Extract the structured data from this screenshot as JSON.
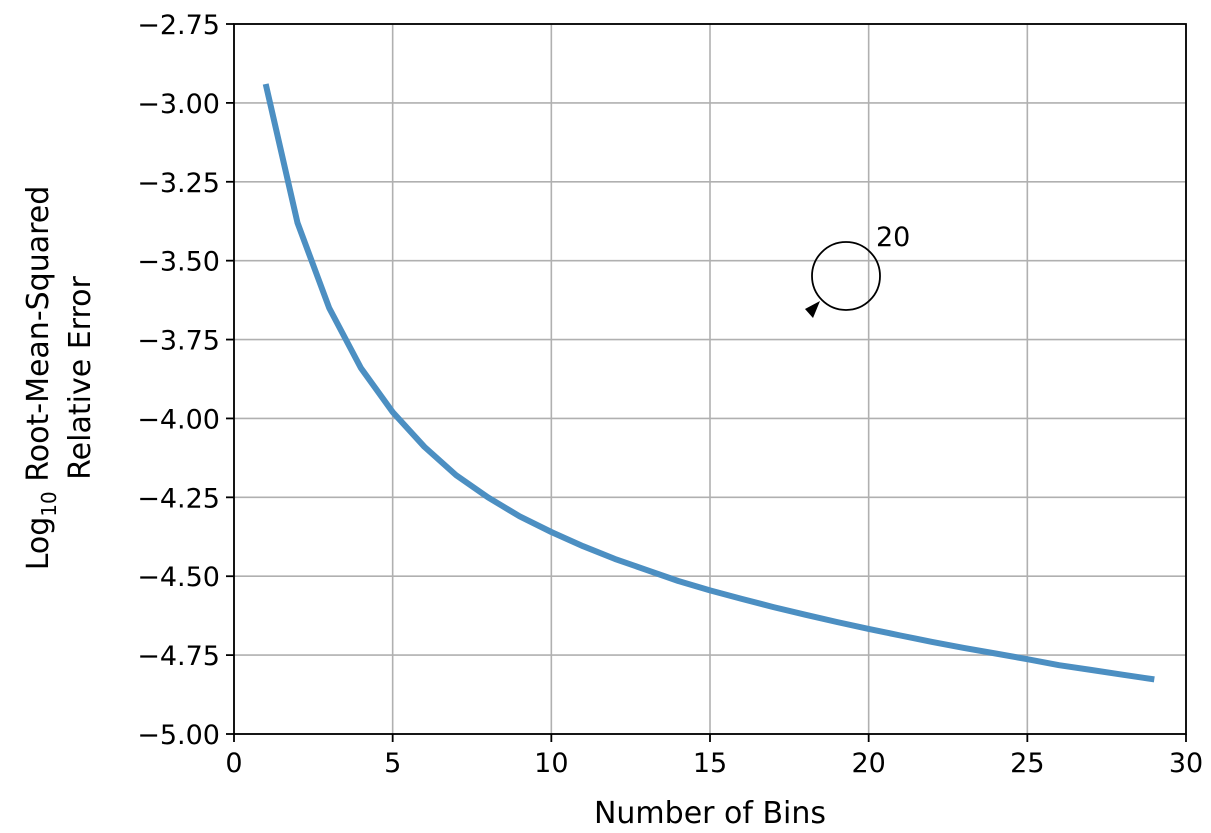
{
  "chart_data": {
    "type": "line",
    "xlabel": "Number of Bins",
    "ylabel": {
      "line1_prefix": "Log",
      "line1_subscript": "10",
      "line1_suffix": " Root-Mean-Squared",
      "line2": "Relative Error"
    },
    "xlim": [
      0,
      30
    ],
    "ylim": [
      -5.0,
      -2.75
    ],
    "xticks": [
      0,
      5,
      10,
      15,
      20,
      25,
      30
    ],
    "xtick_labels": [
      "0",
      "5",
      "10",
      "15",
      "20",
      "25",
      "30"
    ],
    "yticks": [
      -2.75,
      -3.0,
      -3.25,
      -3.5,
      -3.75,
      -4.0,
      -4.25,
      -4.5,
      -4.75,
      -5.0
    ],
    "ytick_labels": [
      "−2.75",
      "−3.00",
      "−3.25",
      "−3.50",
      "−3.75",
      "−4.00",
      "−4.25",
      "−4.50",
      "−4.75",
      "−5.00"
    ],
    "grid": true,
    "series": [
      {
        "color": "#4c8fc2",
        "x": [
          1,
          2,
          3,
          4,
          5,
          6,
          7,
          8,
          9,
          10,
          11,
          12,
          13,
          14,
          15,
          16,
          17,
          18,
          19,
          20,
          21,
          22,
          23,
          24,
          25,
          26,
          27,
          28,
          29
        ],
        "y": [
          -2.94,
          -3.38,
          -3.65,
          -3.84,
          -3.98,
          -4.09,
          -4.18,
          -4.25,
          -4.31,
          -4.36,
          -4.405,
          -4.445,
          -4.48,
          -4.515,
          -4.545,
          -4.572,
          -4.598,
          -4.622,
          -4.645,
          -4.667,
          -4.688,
          -4.708,
          -4.727,
          -4.745,
          -4.763,
          -4.782,
          -4.797,
          -4.812,
          -4.827
        ]
      }
    ],
    "annotation": {
      "text": "20",
      "icon": "circular-arrow-icon"
    }
  }
}
